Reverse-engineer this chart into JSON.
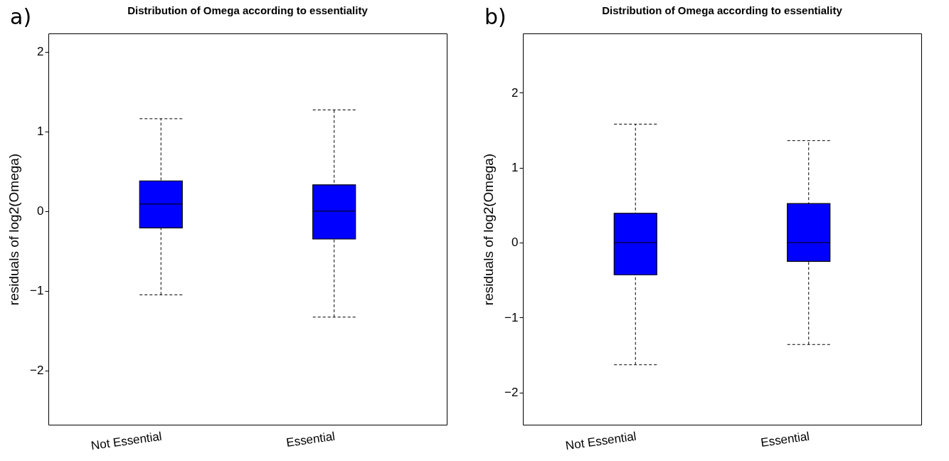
{
  "chart_data": [
    {
      "type": "box",
      "title": "Distribution of Omega according to essentiality",
      "ylabel": "residuals of log2(Omega)",
      "annotations": [
        "a)"
      ],
      "categories": [
        "Not Essential",
        "Essential"
      ],
      "ylim": [
        -2.68,
        2.23
      ],
      "yticks": [
        -2,
        -1,
        0,
        1,
        2
      ],
      "grid": false,
      "line_style": "dashed",
      "series": [
        {
          "color": "#0000ff",
          "boxes": [
            {
              "low": -1.05,
              "q1": -0.21,
              "median": 0.09,
              "q3": 0.38,
              "high": 1.16
            },
            {
              "low": -1.33,
              "q1": -0.35,
              "median": 0.0,
              "q3": 0.33,
              "high": 1.27
            }
          ]
        }
      ]
    },
    {
      "type": "box",
      "title": "Distribution of Omega according to essentiality",
      "ylabel": "residuals of log2(Omega)",
      "annotations": [
        "b)"
      ],
      "categories": [
        "Not Essential",
        "Essential"
      ],
      "ylim": [
        -2.43,
        2.79
      ],
      "yticks": [
        -2,
        -1,
        0,
        1,
        2
      ],
      "grid": false,
      "line_style": "dashed",
      "series": [
        {
          "color": "#0000ff",
          "boxes": [
            {
              "low": -1.63,
              "q1": -0.43,
              "median": 0.0,
              "q3": 0.39,
              "high": 1.58
            },
            {
              "low": -1.36,
              "q1": -0.25,
              "median": 0.0,
              "q3": 0.52,
              "high": 1.36
            }
          ]
        }
      ]
    }
  ]
}
